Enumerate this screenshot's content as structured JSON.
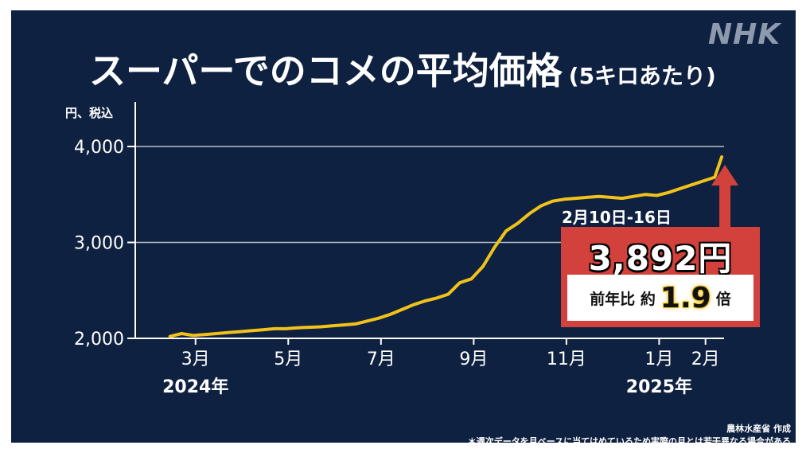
{
  "brand": {
    "logo": "NHK"
  },
  "colors": {
    "background": "#0f2140",
    "line": "#f0c21a",
    "callout": "#d2413b",
    "grid": "#b8bfcc"
  },
  "chart_data": {
    "type": "line",
    "title": "スーパーでのコメの平均価格",
    "subtitle": "(5キロあたり)",
    "ylabel": "円、税込",
    "ylim": [
      2000,
      4000
    ],
    "yticks": [
      {
        "value": 2000,
        "label": "2,000"
      },
      {
        "value": 3000,
        "label": "3,000"
      },
      {
        "value": 4000,
        "label": "4,000"
      }
    ],
    "xlim": [
      1.7,
      14.4
    ],
    "xticks": [
      {
        "value": 3,
        "label": "3月"
      },
      {
        "value": 5,
        "label": "5月"
      },
      {
        "value": 7,
        "label": "7月"
      },
      {
        "value": 9,
        "label": "9月"
      },
      {
        "value": 11,
        "label": "11月"
      },
      {
        "value": 13,
        "label": "1月"
      },
      {
        "value": 14,
        "label": "2月"
      }
    ],
    "year_labels": [
      {
        "value": 3,
        "label": "2024年"
      },
      {
        "value": 13,
        "label": "2025年"
      }
    ],
    "grid": true,
    "series": [
      {
        "x": [
          2.45,
          2.7,
          2.95,
          3.2,
          3.45,
          3.7,
          3.95,
          4.2,
          4.45,
          4.7,
          4.95,
          5.2,
          5.45,
          5.7,
          5.95,
          6.2,
          6.45,
          6.7,
          6.95,
          7.2,
          7.45,
          7.7,
          7.95,
          8.2,
          8.45,
          8.7,
          8.95,
          9.2,
          9.45,
          9.7,
          9.95,
          10.2,
          10.45,
          10.7,
          10.95,
          11.2,
          11.45,
          11.7,
          11.95,
          12.2,
          12.45,
          12.7,
          12.95,
          13.2,
          13.45,
          13.7,
          13.95,
          14.2,
          14.35
        ],
        "values": [
          2020,
          2050,
          2030,
          2040,
          2050,
          2060,
          2070,
          2080,
          2090,
          2100,
          2100,
          2110,
          2115,
          2120,
          2130,
          2140,
          2150,
          2180,
          2210,
          2250,
          2300,
          2350,
          2390,
          2420,
          2460,
          2580,
          2620,
          2750,
          2950,
          3120,
          3200,
          3300,
          3380,
          3430,
          3450,
          3460,
          3470,
          3480,
          3470,
          3460,
          3480,
          3500,
          3490,
          3520,
          3560,
          3600,
          3640,
          3680,
          3892
        ]
      }
    ],
    "annotation": {
      "date": "2月10日-16日",
      "value_label": "3,892円",
      "ratio_label": "前年比 約",
      "ratio_value": "1.9",
      "ratio_unit": "倍"
    },
    "source": "農林水産省 作成",
    "note": "＊週次データを月ベースに当てはめているため実際の月とは若干異なる場合がある"
  }
}
